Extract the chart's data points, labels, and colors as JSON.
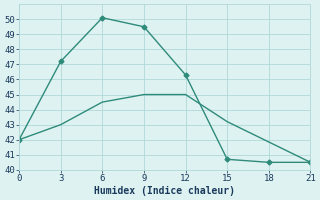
{
  "series1_x": [
    0,
    3,
    6,
    9,
    12,
    15,
    18,
    21
  ],
  "series1_y": [
    42,
    47.2,
    50.1,
    49.5,
    46.3,
    40.7,
    40.5,
    40.5
  ],
  "series2_x": [
    0,
    3,
    6,
    9,
    12,
    15,
    21
  ],
  "series2_y": [
    42,
    43,
    44.5,
    45,
    45,
    43.2,
    40.5
  ],
  "color": "#2e8b7a",
  "bg_color": "#dff2f2",
  "grid_color": "#b0d8d8",
  "xlabel": "Humidex (Indice chaleur)",
  "xlim": [
    0,
    21
  ],
  "ylim": [
    40,
    51
  ],
  "xticks": [
    0,
    3,
    6,
    9,
    12,
    15,
    18,
    21
  ],
  "yticks": [
    40,
    41,
    42,
    43,
    44,
    45,
    46,
    47,
    48,
    49,
    50
  ],
  "font_color": "#1a3a5c",
  "marker": "D",
  "markersize": 2.5,
  "linewidth": 1.0
}
